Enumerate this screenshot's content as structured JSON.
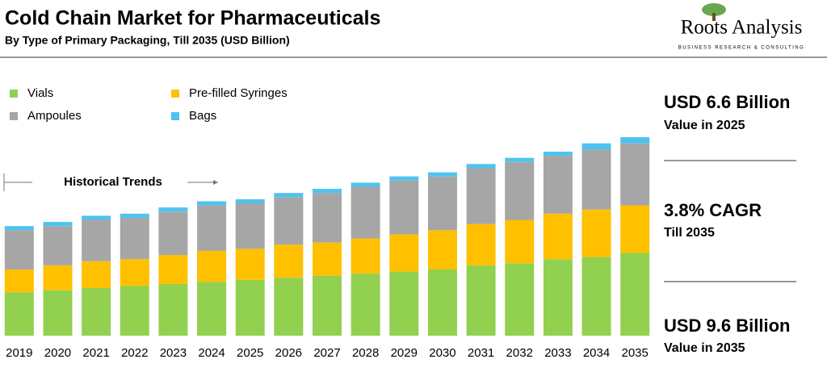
{
  "chart_data": {
    "type": "stacked-bar",
    "title": "Cold Chain Market for Pharmaceuticals",
    "subtitle": "By Type of Primary Packaging, Till 2035 (USD Billion)",
    "brand": {
      "name": "Roots Analysis",
      "tagline": "BUSINESS RESEARCH & CONSULTING"
    },
    "annotation": "Historical Trends",
    "categories": [
      "2019",
      "2020",
      "2021",
      "2022",
      "2023",
      "2024",
      "2025",
      "2026",
      "2027",
      "2028",
      "2029",
      "2030",
      "2031",
      "2032",
      "2033",
      "2034",
      "2035"
    ],
    "series": [
      {
        "name": "Vials",
        "color": "#92d050",
        "values": [
          2.1,
          2.2,
          2.3,
          2.4,
          2.5,
          2.6,
          2.7,
          2.8,
          2.9,
          3.0,
          3.1,
          3.2,
          3.4,
          3.5,
          3.7,
          3.8,
          4.0
        ]
      },
      {
        "name": "Pre-filled Syringes",
        "color": "#ffc000",
        "values": [
          1.1,
          1.2,
          1.3,
          1.3,
          1.4,
          1.5,
          1.5,
          1.6,
          1.6,
          1.7,
          1.8,
          1.9,
          2.0,
          2.1,
          2.2,
          2.3,
          2.3
        ]
      },
      {
        "name": "Ampoules",
        "color": "#a6a6a6",
        "values": [
          1.9,
          1.9,
          2.0,
          2.0,
          2.1,
          2.2,
          2.2,
          2.3,
          2.4,
          2.5,
          2.6,
          2.6,
          2.7,
          2.8,
          2.8,
          2.9,
          3.0
        ]
      },
      {
        "name": "Bags",
        "color": "#4fc3f0",
        "values": [
          0.2,
          0.2,
          0.2,
          0.2,
          0.2,
          0.2,
          0.2,
          0.2,
          0.2,
          0.2,
          0.2,
          0.2,
          0.2,
          0.2,
          0.2,
          0.3,
          0.3
        ]
      }
    ],
    "side_notes": [
      {
        "headline": "USD 6.6 Billion",
        "caption": "Value in 2025"
      },
      {
        "headline": "3.8% CAGR",
        "caption": "Till 2035"
      },
      {
        "headline": "USD 9.6 Billion",
        "caption": "Value in 2035"
      }
    ]
  }
}
